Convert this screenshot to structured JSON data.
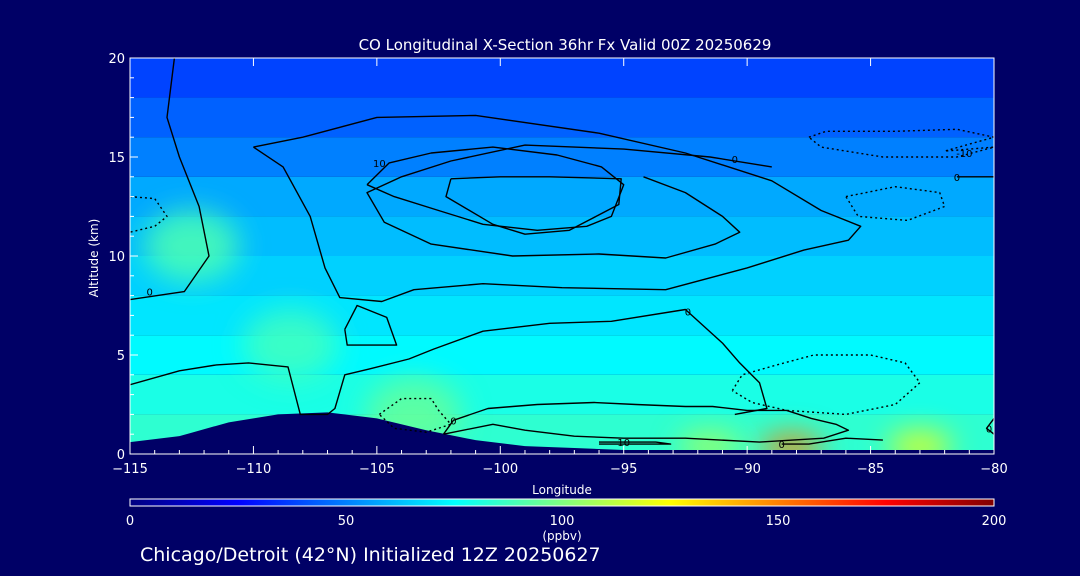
{
  "chart_data": {
    "type": "heatmap",
    "title": "CO Longitudinal X-Section 36hr  Fx Valid 00Z 20250629",
    "xlabel": "Longitude",
    "ylabel": "Altitude (km)",
    "xlim": [
      -115,
      -80
    ],
    "ylim": [
      0,
      20
    ],
    "x_ticks": [
      -115,
      -110,
      -105,
      -100,
      -95,
      -90,
      -85,
      -80
    ],
    "x_tick_labels": [
      "−115",
      "−110",
      "−105",
      "−100",
      "−95",
      "−90",
      "−85",
      "−80"
    ],
    "y_ticks": [
      0,
      5,
      10,
      15,
      20
    ],
    "colorbar": {
      "label": "(ppbv)",
      "min": 0,
      "max": 200,
      "ticks": [
        0,
        50,
        100,
        150,
        200
      ],
      "colors": [
        "#000080",
        "#0000ff",
        "#0080ff",
        "#00ffff",
        "#80ff80",
        "#ffff00",
        "#ff8000",
        "#ff0000",
        "#800000"
      ]
    },
    "fill_legend": {
      "min_concentration_ppbv": 0,
      "max_concentration_ppbv": 200
    },
    "field_bands": [
      {
        "alt_km": 19,
        "co_ppbv": 38
      },
      {
        "alt_km": 17,
        "co_ppbv": 44
      },
      {
        "alt_km": 15,
        "co_ppbv": 50
      },
      {
        "alt_km": 13,
        "co_ppbv": 58
      },
      {
        "alt_km": 11,
        "co_ppbv": 62
      },
      {
        "alt_km": 9,
        "co_ppbv": 66
      },
      {
        "alt_km": 7,
        "co_ppbv": 70
      },
      {
        "alt_km": 5,
        "co_ppbv": 74
      },
      {
        "alt_km": 3,
        "co_ppbv": 80
      },
      {
        "alt_km": 1,
        "co_ppbv": 84
      }
    ],
    "hotspots": [
      {
        "lon": -88.2,
        "alt_km": 0.3,
        "co_ppbv": 150
      },
      {
        "lon": -83.0,
        "alt_km": 0.4,
        "co_ppbv": 125
      },
      {
        "lon": -91.5,
        "alt_km": 0.4,
        "co_ppbv": 110
      },
      {
        "lon": -103.5,
        "alt_km": 2.0,
        "co_ppbv": 95
      },
      {
        "lon": -112.5,
        "alt_km": 10.5,
        "co_ppbv": 90
      },
      {
        "lon": -108.5,
        "alt_km": 5.5,
        "co_ppbv": 88
      }
    ],
    "terrain_km": [
      {
        "lon": -115,
        "alt_km": 0.6
      },
      {
        "lon": -113,
        "alt_km": 0.9
      },
      {
        "lon": -111,
        "alt_km": 1.6
      },
      {
        "lon": -109,
        "alt_km": 2.0
      },
      {
        "lon": -107,
        "alt_km": 2.1
      },
      {
        "lon": -105,
        "alt_km": 1.8
      },
      {
        "lon": -103,
        "alt_km": 1.2
      },
      {
        "lon": -101,
        "alt_km": 0.7
      },
      {
        "lon": -99,
        "alt_km": 0.4
      },
      {
        "lon": -97,
        "alt_km": 0.3
      },
      {
        "lon": -95,
        "alt_km": 0.2
      },
      {
        "lon": -80,
        "alt_km": 0.2
      }
    ],
    "contours": [
      {
        "style": "solid",
        "label": "0",
        "label_at": [
          -114.2,
          8.2
        ],
        "points": [
          [
            -113.2,
            20
          ],
          [
            -113.5,
            17
          ],
          [
            -113.0,
            15
          ],
          [
            -112.2,
            12.5
          ],
          [
            -111.8,
            10
          ],
          [
            -112.8,
            8.2
          ],
          [
            -115,
            7.8
          ]
        ]
      },
      {
        "style": "solid",
        "label": "",
        "points": [
          [
            -110,
            15.5
          ],
          [
            -108.8,
            14.5
          ],
          [
            -107.7,
            12
          ],
          [
            -107.1,
            9.4
          ],
          [
            -106.5,
            7.9
          ],
          [
            -104.8,
            7.7
          ],
          [
            -103.5,
            8.3
          ],
          [
            -100.7,
            8.6
          ],
          [
            -97.5,
            8.4
          ],
          [
            -93.3,
            8.3
          ],
          [
            -90,
            9.4
          ],
          [
            -87.7,
            10.3
          ],
          [
            -85.9,
            10.8
          ],
          [
            -85.4,
            11.5
          ],
          [
            -87,
            12.3
          ],
          [
            -89,
            13.8
          ],
          [
            -92.5,
            15.2
          ],
          [
            -96,
            16.2
          ],
          [
            -101,
            17.1
          ],
          [
            -105,
            17.0
          ],
          [
            -108,
            16.0
          ],
          [
            -110,
            15.5
          ]
        ]
      },
      {
        "style": "solid",
        "label": "0",
        "label_at": [
          -90.5,
          14.9
        ],
        "points": [
          [
            -89.0,
            14.5
          ],
          [
            -91.5,
            15.0
          ],
          [
            -95,
            15.4
          ],
          [
            -99,
            15.6
          ],
          [
            -102,
            14.8
          ],
          [
            -104.0,
            14.0
          ],
          [
            -105.4,
            13.2
          ],
          [
            -104.7,
            11.7
          ],
          [
            -102.8,
            10.6
          ],
          [
            -99.5,
            10.0
          ],
          [
            -96,
            10.1
          ],
          [
            -93.3,
            9.9
          ],
          [
            -91.3,
            10.6
          ],
          [
            -90.3,
            11.2
          ],
          [
            -91.0,
            12.0
          ],
          [
            -92.5,
            13.2
          ],
          [
            -94.2,
            14.0
          ]
        ]
      },
      {
        "style": "solid",
        "label": "10",
        "label_at": [
          -104.9,
          14.7
        ],
        "points": [
          [
            -105.4,
            13.6
          ],
          [
            -104.5,
            14.7
          ],
          [
            -102.8,
            15.2
          ],
          [
            -100.3,
            15.5
          ],
          [
            -97.7,
            15.1
          ],
          [
            -95.9,
            14.5
          ],
          [
            -95.0,
            13.6
          ],
          [
            -95.5,
            12.0
          ],
          [
            -96.5,
            11.5
          ],
          [
            -98.5,
            11.3
          ],
          [
            -100.7,
            11.6
          ],
          [
            -102.5,
            12.3
          ],
          [
            -104.3,
            13.0
          ],
          [
            -105.4,
            13.6
          ]
        ]
      },
      {
        "style": "solid",
        "label": "",
        "points": [
          [
            -102.0,
            13.9
          ],
          [
            -102.2,
            13.0
          ],
          [
            -100.3,
            11.6
          ],
          [
            -99.0,
            11.1
          ],
          [
            -97.2,
            11.3
          ],
          [
            -95.2,
            12.6
          ],
          [
            -95.1,
            13.9
          ],
          [
            -98.0,
            14.0
          ],
          [
            -100.0,
            14.0
          ],
          [
            -102.0,
            13.9
          ]
        ]
      },
      {
        "style": "solid",
        "label": "",
        "points": [
          [
            -106.3,
            6.3
          ],
          [
            -105.8,
            7.5
          ],
          [
            -104.6,
            6.9
          ],
          [
            -104.2,
            5.5
          ],
          [
            -106.2,
            5.5
          ],
          [
            -106.3,
            6.3
          ]
        ]
      },
      {
        "style": "solid",
        "label": "0",
        "label_at": [
          -92.4,
          7.2
        ],
        "points": [
          [
            -115,
            3.5
          ],
          [
            -113.0,
            4.2
          ],
          [
            -111.5,
            4.5
          ],
          [
            -110.2,
            4.6
          ],
          [
            -108.6,
            4.4
          ],
          [
            -108.1,
            2.0
          ],
          [
            -107.0,
            2.0
          ],
          [
            -106.7,
            2.3
          ],
          [
            -106.3,
            4.0
          ],
          [
            -105.3,
            4.3
          ],
          [
            -103.7,
            4.8
          ],
          [
            -102.7,
            5.3
          ],
          [
            -100.7,
            6.2
          ],
          [
            -98.0,
            6.6
          ],
          [
            -95.5,
            6.7
          ],
          [
            -92.5,
            7.3
          ],
          [
            -91.0,
            5.6
          ],
          [
            -90.3,
            4.6
          ],
          [
            -89.5,
            3.6
          ],
          [
            -89.2,
            2.3
          ],
          [
            -90.5,
            2.0
          ]
        ]
      },
      {
        "style": "solid",
        "label": "0",
        "label_at": [
          -101.9,
          1.7
        ],
        "points": [
          [
            -102.3,
            1.0
          ],
          [
            -101.9,
            1.7
          ],
          [
            -100.5,
            2.3
          ],
          [
            -98.5,
            2.5
          ],
          [
            -96.2,
            2.6
          ],
          [
            -94.5,
            2.5
          ],
          [
            -92.5,
            2.4
          ],
          [
            -91.4,
            2.4
          ],
          [
            -90.0,
            2.2
          ],
          [
            -88.4,
            2.2
          ],
          [
            -87.4,
            1.8
          ],
          [
            -86.4,
            1.5
          ],
          [
            -85.9,
            1.2
          ],
          [
            -86.9,
            0.8
          ],
          [
            -89.5,
            0.6
          ],
          [
            -92.5,
            0.8
          ],
          [
            -95.0,
            0.8
          ],
          [
            -97.0,
            0.9
          ],
          [
            -99.0,
            1.2
          ],
          [
            -100.3,
            1.5
          ],
          [
            -102.3,
            1.0
          ]
        ]
      },
      {
        "style": "solid",
        "label": "10",
        "label_at": [
          -95.0,
          0.6
        ],
        "points": [
          [
            -96.0,
            0.6
          ],
          [
            -93.7,
            0.6
          ],
          [
            -93.1,
            0.5
          ],
          [
            -96.0,
            0.5
          ]
        ]
      },
      {
        "style": "solid",
        "label": "0",
        "label_at": [
          -80.2,
          1.3
        ],
        "points": [
          [
            -80,
            1.8
          ],
          [
            -80.3,
            1.3
          ],
          [
            -80.0,
            1.0
          ]
        ]
      },
      {
        "style": "dotted",
        "label": "",
        "points": [
          [
            -115,
            13.0
          ],
          [
            -114.0,
            12.9
          ],
          [
            -113.5,
            12.0
          ],
          [
            -114.0,
            11.5
          ],
          [
            -115,
            11.2
          ]
        ]
      },
      {
        "style": "dotted",
        "label": "",
        "points": [
          [
            -104.9,
            2.0
          ],
          [
            -104.0,
            2.8
          ],
          [
            -102.8,
            2.8
          ],
          [
            -102.5,
            2.2
          ],
          [
            -102.0,
            1.5
          ],
          [
            -103.0,
            1.1
          ],
          [
            -104.3,
            1.3
          ],
          [
            -104.9,
            2.0
          ]
        ]
      },
      {
        "style": "dotted",
        "label": "",
        "points": [
          [
            -90.6,
            3.2
          ],
          [
            -90.2,
            4.0
          ],
          [
            -88.8,
            4.5
          ],
          [
            -87.3,
            5.0
          ],
          [
            -85.0,
            5.0
          ],
          [
            -83.6,
            4.6
          ],
          [
            -83.0,
            3.6
          ],
          [
            -84.0,
            2.5
          ],
          [
            -86.0,
            2.0
          ],
          [
            -88.4,
            2.2
          ],
          [
            -89.8,
            2.6
          ],
          [
            -90.6,
            3.2
          ]
        ]
      },
      {
        "style": "dotted",
        "label": "-10",
        "label_at": [
          -81.2,
          15.2
        ],
        "points": [
          [
            -87.5,
            16.0
          ],
          [
            -86.8,
            16.3
          ],
          [
            -84.0,
            16.3
          ],
          [
            -81.5,
            16.4
          ],
          [
            -80.0,
            16.0
          ],
          [
            -82.0,
            15.3
          ],
          [
            -80.0,
            15.5
          ],
          [
            -81.5,
            15.0
          ],
          [
            -84.5,
            15.0
          ],
          [
            -87.0,
            15.5
          ],
          [
            -87.5,
            16.0
          ]
        ]
      },
      {
        "style": "dotted",
        "label": "",
        "points": [
          [
            -86.0,
            13.0
          ],
          [
            -84.0,
            13.5
          ],
          [
            -82.2,
            13.2
          ],
          [
            -82.0,
            12.5
          ],
          [
            -83.5,
            11.8
          ],
          [
            -85.5,
            12.0
          ],
          [
            -86.0,
            13.0
          ]
        ]
      },
      {
        "style": "solid",
        "label": "0",
        "label_at": [
          -81.5,
          14.0
        ],
        "points": [
          [
            -80,
            14.0
          ],
          [
            -81.5,
            14.0
          ]
        ]
      },
      {
        "style": "solid",
        "label": "0",
        "label_at": [
          -88.6,
          0.5
        ],
        "points": [
          [
            -88.6,
            0.5
          ],
          [
            -87.5,
            0.5
          ],
          [
            -86.0,
            0.8
          ],
          [
            -84.5,
            0.7
          ]
        ]
      }
    ]
  },
  "subtitle": "Chicago/Detroit (42°N) Initialized 12Z 20250627"
}
